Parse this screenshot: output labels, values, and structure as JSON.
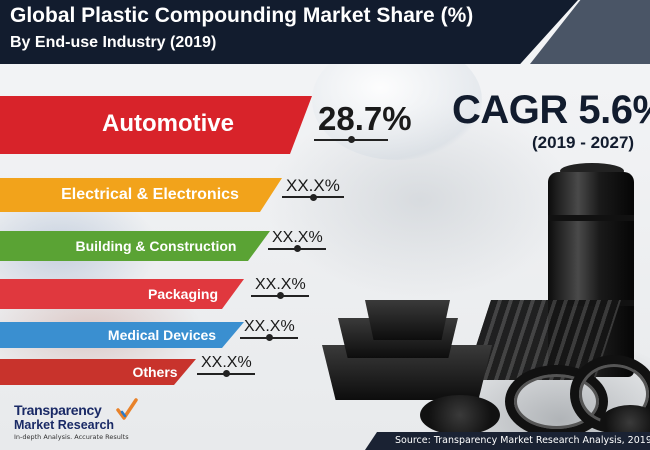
{
  "header": {
    "title": "Global Plastic Compounding Market Share (%)",
    "subtitle": "By End-use Industry (2019)"
  },
  "colors": {
    "header_bg": "#121c2e",
    "automotive": "#d8232a",
    "electrical": "#f2a31b",
    "building": "#5aa334",
    "packaging": "#e0383e",
    "medical": "#3a8fd0",
    "others": "#c8332c"
  },
  "chart_data": {
    "type": "bar",
    "categories": [
      "Automotive",
      "Electrical & Electronics",
      "Building & Construction",
      "Packaging",
      "Medical Devices",
      "Others"
    ],
    "values": [
      "28.7%",
      "XX.X%",
      "XX.X%",
      "XX.X%",
      "XX.X%",
      "XX.X%"
    ],
    "title": "Global Plastic Compounding Market Share (%)",
    "subtitle": "By End-use Industry (2019)"
  },
  "cagr": {
    "label": "CAGR 5.6%",
    "range": "(2019 - 2027)"
  },
  "footer": {
    "source": "Source: Transparency Market Research Analysis, 2019",
    "logo_line1": "Transparency",
    "logo_line2": "Market Research",
    "logo_tagline": "In-depth Analysis. Accurate Results"
  },
  "icons": [
    "checkmark-logo-icon",
    "drum-icon",
    "tray-icon",
    "pallet-icon",
    "hose-icon"
  ]
}
